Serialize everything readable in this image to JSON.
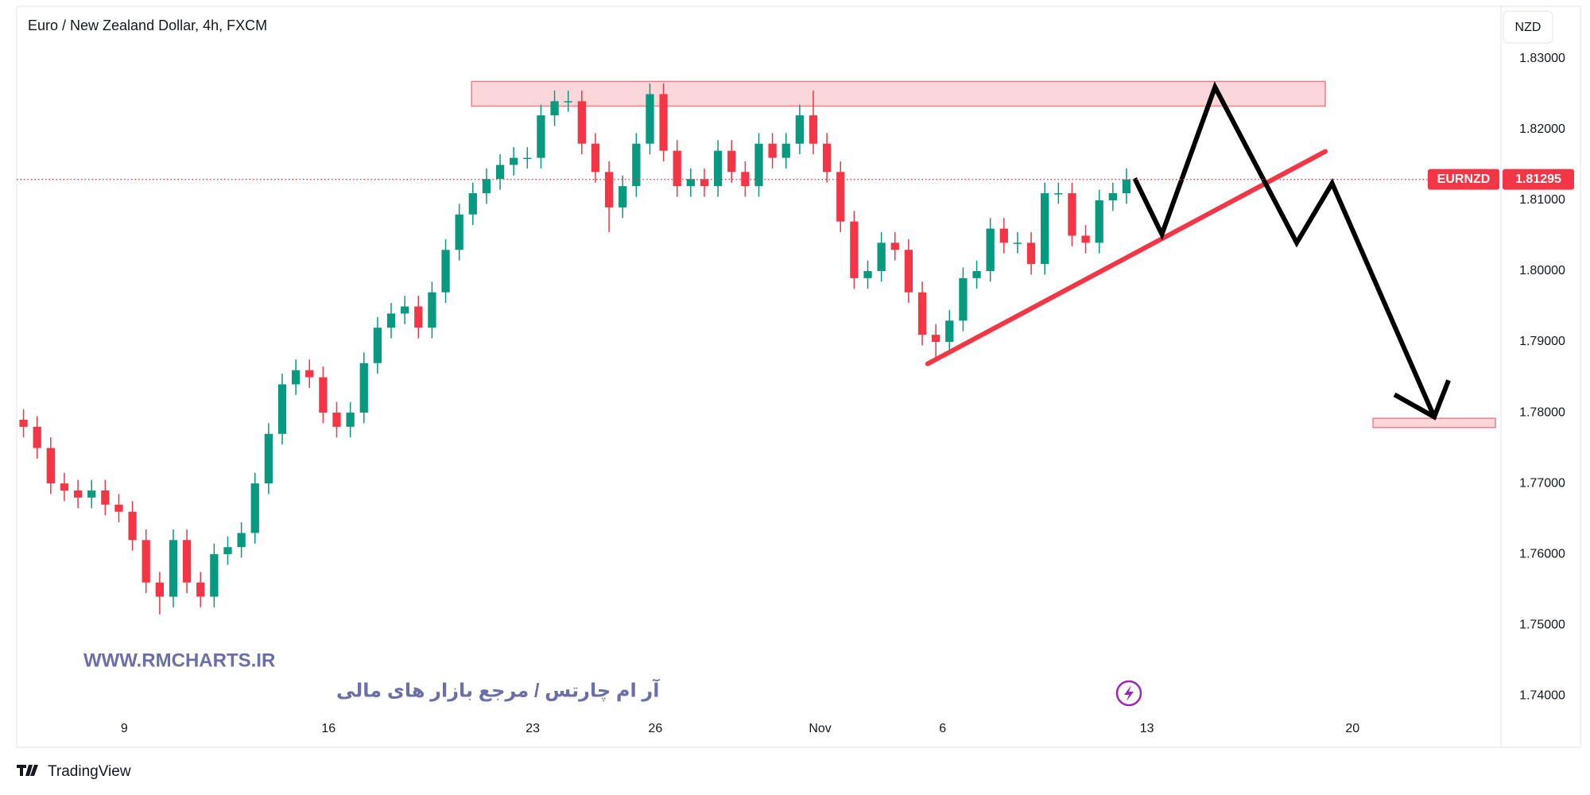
{
  "chart_data": {
    "type": "candlestick",
    "title": "Euro / New Zealand Dollar, 4h, FXCM",
    "currency": "NZD",
    "symbol": "EURNZD",
    "watermark_url": "WWW.RMCHARTS.IR",
    "watermark_text": "آر ام چارتس / مرجع بازار های مالی",
    "brand": "TradingView",
    "up_color": "#089981",
    "down_color": "#f23645",
    "xlim": [
      -0.5,
      108.5
    ],
    "xticks": [
      {
        "value": 7.4,
        "label": "9"
      },
      {
        "value": 22.4,
        "label": "16"
      },
      {
        "value": 37.4,
        "label": "23"
      },
      {
        "value": 46.4,
        "label": "26"
      },
      {
        "value": 58.5,
        "label": "Nov"
      },
      {
        "value": 67.5,
        "label": "6"
      },
      {
        "value": 82.5,
        "label": "13"
      },
      {
        "value": 97.6,
        "label": "20"
      }
    ],
    "ylim": [
      1.7371,
      1.8374
    ],
    "yticks": [
      {
        "value": 1.74,
        "label": "1.74000"
      },
      {
        "value": 1.75,
        "label": "1.75000"
      },
      {
        "value": 1.76,
        "label": "1.76000"
      },
      {
        "value": 1.77,
        "label": "1.77000"
      },
      {
        "value": 1.78,
        "label": "1.78000"
      },
      {
        "value": 1.79,
        "label": "1.79000"
      },
      {
        "value": 1.8,
        "label": "1.80000"
      },
      {
        "value": 1.81,
        "label": "1.81000"
      },
      {
        "value": 1.82,
        "label": "1.82000"
      },
      {
        "value": 1.83,
        "label": "1.83000"
      }
    ],
    "grid": false,
    "open": [
      1.779,
      1.778,
      1.775,
      1.77,
      1.769,
      1.768,
      1.769,
      1.767,
      1.766,
      1.762,
      1.756,
      1.754,
      1.762,
      1.756,
      1.754,
      1.76,
      1.761,
      1.763,
      1.77,
      1.777,
      1.784,
      1.786,
      1.785,
      1.78,
      1.778,
      1.78,
      1.787,
      1.792,
      1.794,
      1.795,
      1.792,
      1.797,
      1.803,
      1.808,
      1.811,
      1.813,
      1.815,
      1.816,
      1.816,
      1.822,
      1.824,
      1.824,
      1.818,
      1.814,
      1.809,
      1.812,
      1.818,
      1.825,
      1.817,
      1.812,
      1.813,
      1.812,
      1.817,
      1.814,
      1.812,
      1.818,
      1.816,
      1.818,
      1.822,
      1.818,
      1.814,
      1.807,
      1.799,
      1.8,
      1.804,
      1.803,
      1.797,
      1.791,
      1.79,
      1.793,
      1.799,
      1.8,
      1.806,
      1.804,
      1.804,
      1.801,
      1.811,
      1.811,
      1.805,
      1.804,
      1.81,
      1.811
    ],
    "high": [
      1.7805,
      1.7795,
      1.7765,
      1.7715,
      1.7705,
      1.7705,
      1.7705,
      1.7685,
      1.7675,
      1.7635,
      1.7575,
      1.7635,
      1.7635,
      1.7575,
      1.7615,
      1.7625,
      1.7645,
      1.7715,
      1.7785,
      1.7855,
      1.7875,
      1.7875,
      1.7865,
      1.7815,
      1.7815,
      1.7885,
      1.7935,
      1.7955,
      1.7965,
      1.7965,
      1.7985,
      1.8045,
      1.8095,
      1.8125,
      1.8145,
      1.8165,
      1.8175,
      1.8175,
      1.8235,
      1.8255,
      1.8255,
      1.8255,
      1.8195,
      1.8155,
      1.8135,
      1.8195,
      1.8265,
      1.8265,
      1.8185,
      1.8145,
      1.8145,
      1.8185,
      1.8185,
      1.8155,
      1.8195,
      1.8195,
      1.8195,
      1.8235,
      1.8255,
      1.8195,
      1.8155,
      1.8085,
      1.8015,
      1.8055,
      1.8055,
      1.8045,
      1.7985,
      1.7925,
      1.7945,
      1.8005,
      1.8015,
      1.8075,
      1.8075,
      1.8055,
      1.8055,
      1.8125,
      1.8125,
      1.8125,
      1.8065,
      1.8115,
      1.8125,
      1.8145
    ],
    "low": [
      1.7765,
      1.7735,
      1.7685,
      1.7675,
      1.7665,
      1.7665,
      1.7655,
      1.7645,
      1.7605,
      1.7545,
      1.7515,
      1.7525,
      1.7545,
      1.7525,
      1.7525,
      1.7585,
      1.7595,
      1.7615,
      1.7685,
      1.7755,
      1.7825,
      1.7835,
      1.7785,
      1.7765,
      1.7765,
      1.7785,
      1.7855,
      1.7905,
      1.7925,
      1.7905,
      1.7905,
      1.7955,
      1.8015,
      1.8065,
      1.8095,
      1.8115,
      1.8135,
      1.8145,
      1.8145,
      1.8205,
      1.8225,
      1.8165,
      1.8125,
      1.8055,
      1.8075,
      1.8105,
      1.8165,
      1.8155,
      1.8105,
      1.8105,
      1.8105,
      1.8105,
      1.8125,
      1.8105,
      1.8105,
      1.8145,
      1.8145,
      1.8165,
      1.8165,
      1.8125,
      1.8055,
      1.7975,
      1.7975,
      1.7985,
      1.8015,
      1.7955,
      1.7895,
      1.7875,
      1.7885,
      1.7915,
      1.7975,
      1.7985,
      1.8025,
      1.8025,
      1.7995,
      1.7995,
      1.8095,
      1.8035,
      1.8025,
      1.8025,
      1.8085,
      1.8095
    ],
    "close": [
      1.778,
      1.775,
      1.77,
      1.769,
      1.768,
      1.769,
      1.767,
      1.766,
      1.762,
      1.756,
      1.754,
      1.762,
      1.756,
      1.754,
      1.76,
      1.761,
      1.763,
      1.77,
      1.777,
      1.784,
      1.786,
      1.785,
      1.78,
      1.778,
      1.78,
      1.787,
      1.792,
      1.794,
      1.795,
      1.792,
      1.797,
      1.803,
      1.808,
      1.811,
      1.813,
      1.815,
      1.816,
      1.816,
      1.822,
      1.824,
      1.824,
      1.818,
      1.814,
      1.809,
      1.812,
      1.818,
      1.825,
      1.817,
      1.812,
      1.813,
      1.812,
      1.817,
      1.814,
      1.812,
      1.818,
      1.816,
      1.818,
      1.822,
      1.818,
      1.814,
      1.807,
      1.799,
      1.8,
      1.804,
      1.803,
      1.797,
      1.791,
      1.79,
      1.793,
      1.799,
      1.8,
      1.806,
      1.804,
      1.804,
      1.801,
      1.811,
      1.811,
      1.805,
      1.804,
      1.81,
      1.811,
      1.81295
    ],
    "zones": [
      {
        "x": [
          32.9,
          95.6
        ],
        "y": [
          1.8233,
          1.8268
        ],
        "color": "#f23645"
      },
      {
        "x": [
          99.1,
          108.1
        ],
        "y": [
          1.7779,
          1.7792
        ],
        "color": "#f23645"
      }
    ],
    "trendline": {
      "x": [
        66.4,
        95.6
      ],
      "y": [
        1.7869,
        1.8169
      ],
      "color": "#f23645"
    },
    "projection": {
      "x": [
        81.6,
        83.6,
        87.5,
        93.5,
        96.1,
        103.6
      ],
      "y": [
        1.8131,
        1.8052,
        1.826,
        1.804,
        1.8124,
        1.7794
      ],
      "color": "#000000"
    }
  }
}
